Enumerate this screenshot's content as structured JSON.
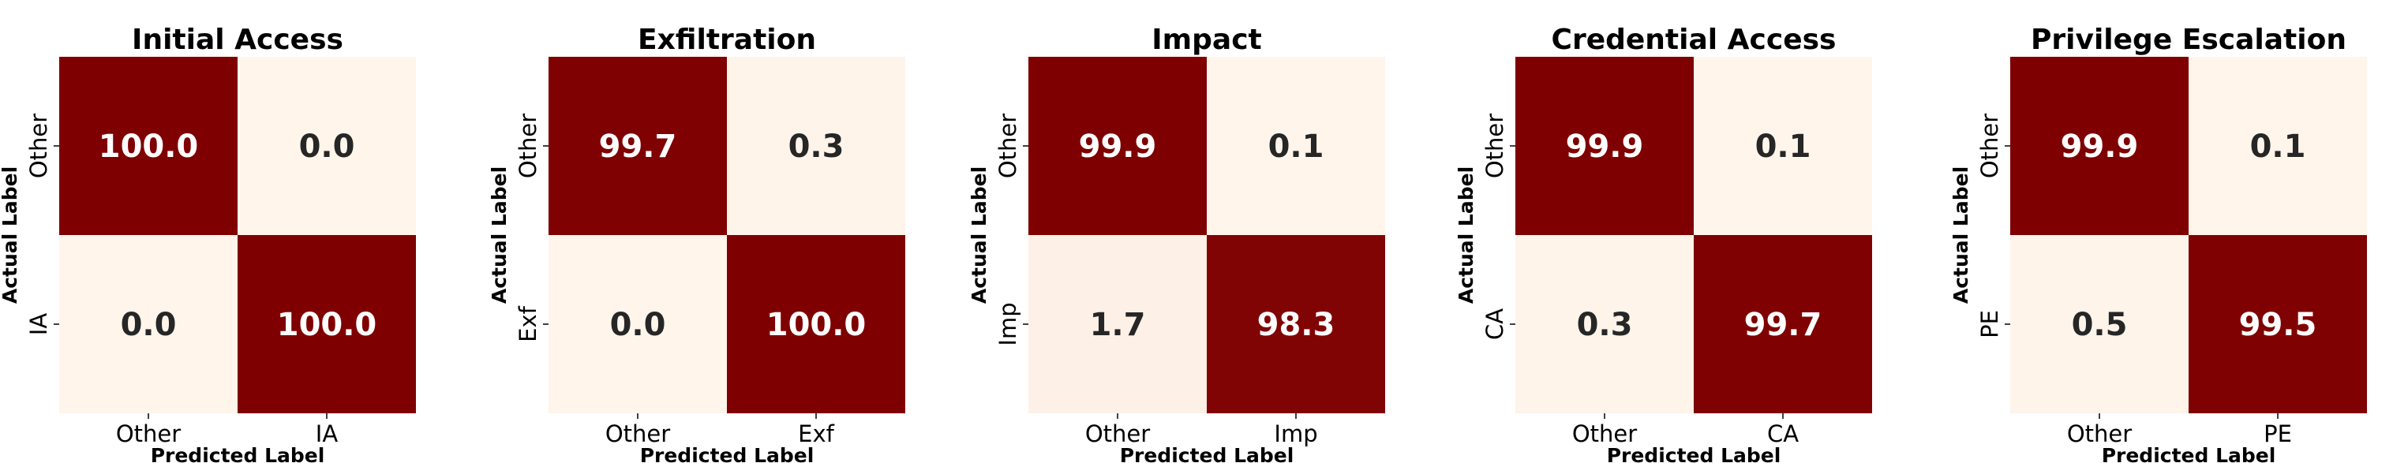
{
  "colors": {
    "high": "#7f0000",
    "low": "#fff5eb",
    "text_on_high": "#ffffff",
    "text_on_low": "#262626",
    "ink": "#000000"
  },
  "chart_data": [
    {
      "type": "heatmap",
      "title": "Initial Access",
      "xlabel": "Predicted Label",
      "ylabel": "Actual Label",
      "x_categories": [
        "Other",
        "IA"
      ],
      "y_categories": [
        "Other",
        "IA"
      ],
      "values": [
        [
          100.0,
          0.0
        ],
        [
          0.0,
          100.0
        ]
      ],
      "value_labels": [
        [
          "100.0",
          "0.0"
        ],
        [
          "0.0",
          "100.0"
        ]
      ],
      "color_range": [
        0,
        100
      ]
    },
    {
      "type": "heatmap",
      "title": "Exfiltration",
      "xlabel": "Predicted Label",
      "ylabel": "Actual Label",
      "x_categories": [
        "Other",
        "Exf"
      ],
      "y_categories": [
        "Other",
        "Exf"
      ],
      "values": [
        [
          99.7,
          0.3
        ],
        [
          0.0,
          100.0
        ]
      ],
      "value_labels": [
        [
          "99.7",
          "0.3"
        ],
        [
          "0.0",
          "100.0"
        ]
      ],
      "color_range": [
        0,
        100
      ]
    },
    {
      "type": "heatmap",
      "title": "Impact",
      "xlabel": "Predicted Label",
      "ylabel": "Actual Label",
      "x_categories": [
        "Other",
        "Imp"
      ],
      "y_categories": [
        "Other",
        "Imp"
      ],
      "values": [
        [
          99.9,
          0.1
        ],
        [
          1.7,
          98.3
        ]
      ],
      "value_labels": [
        [
          "99.9",
          "0.1"
        ],
        [
          "1.7",
          "98.3"
        ]
      ],
      "color_range": [
        0,
        100
      ]
    },
    {
      "type": "heatmap",
      "title": "Credential Access",
      "xlabel": "Predicted Label",
      "ylabel": "Actual Label",
      "x_categories": [
        "Other",
        "CA"
      ],
      "y_categories": [
        "Other",
        "CA"
      ],
      "values": [
        [
          99.9,
          0.1
        ],
        [
          0.3,
          99.7
        ]
      ],
      "value_labels": [
        [
          "99.9",
          "0.1"
        ],
        [
          "0.3",
          "99.7"
        ]
      ],
      "color_range": [
        0,
        100
      ]
    },
    {
      "type": "heatmap",
      "title": "Privilege Escalation",
      "xlabel": "Predicted Label",
      "ylabel": "Actual Label",
      "x_categories": [
        "Other",
        "PE"
      ],
      "y_categories": [
        "Other",
        "PE"
      ],
      "values": [
        [
          99.9,
          0.1
        ],
        [
          0.5,
          99.5
        ]
      ],
      "value_labels": [
        [
          "99.9",
          "0.1"
        ],
        [
          "0.5",
          "99.5"
        ]
      ],
      "color_range": [
        0,
        100
      ]
    }
  ]
}
